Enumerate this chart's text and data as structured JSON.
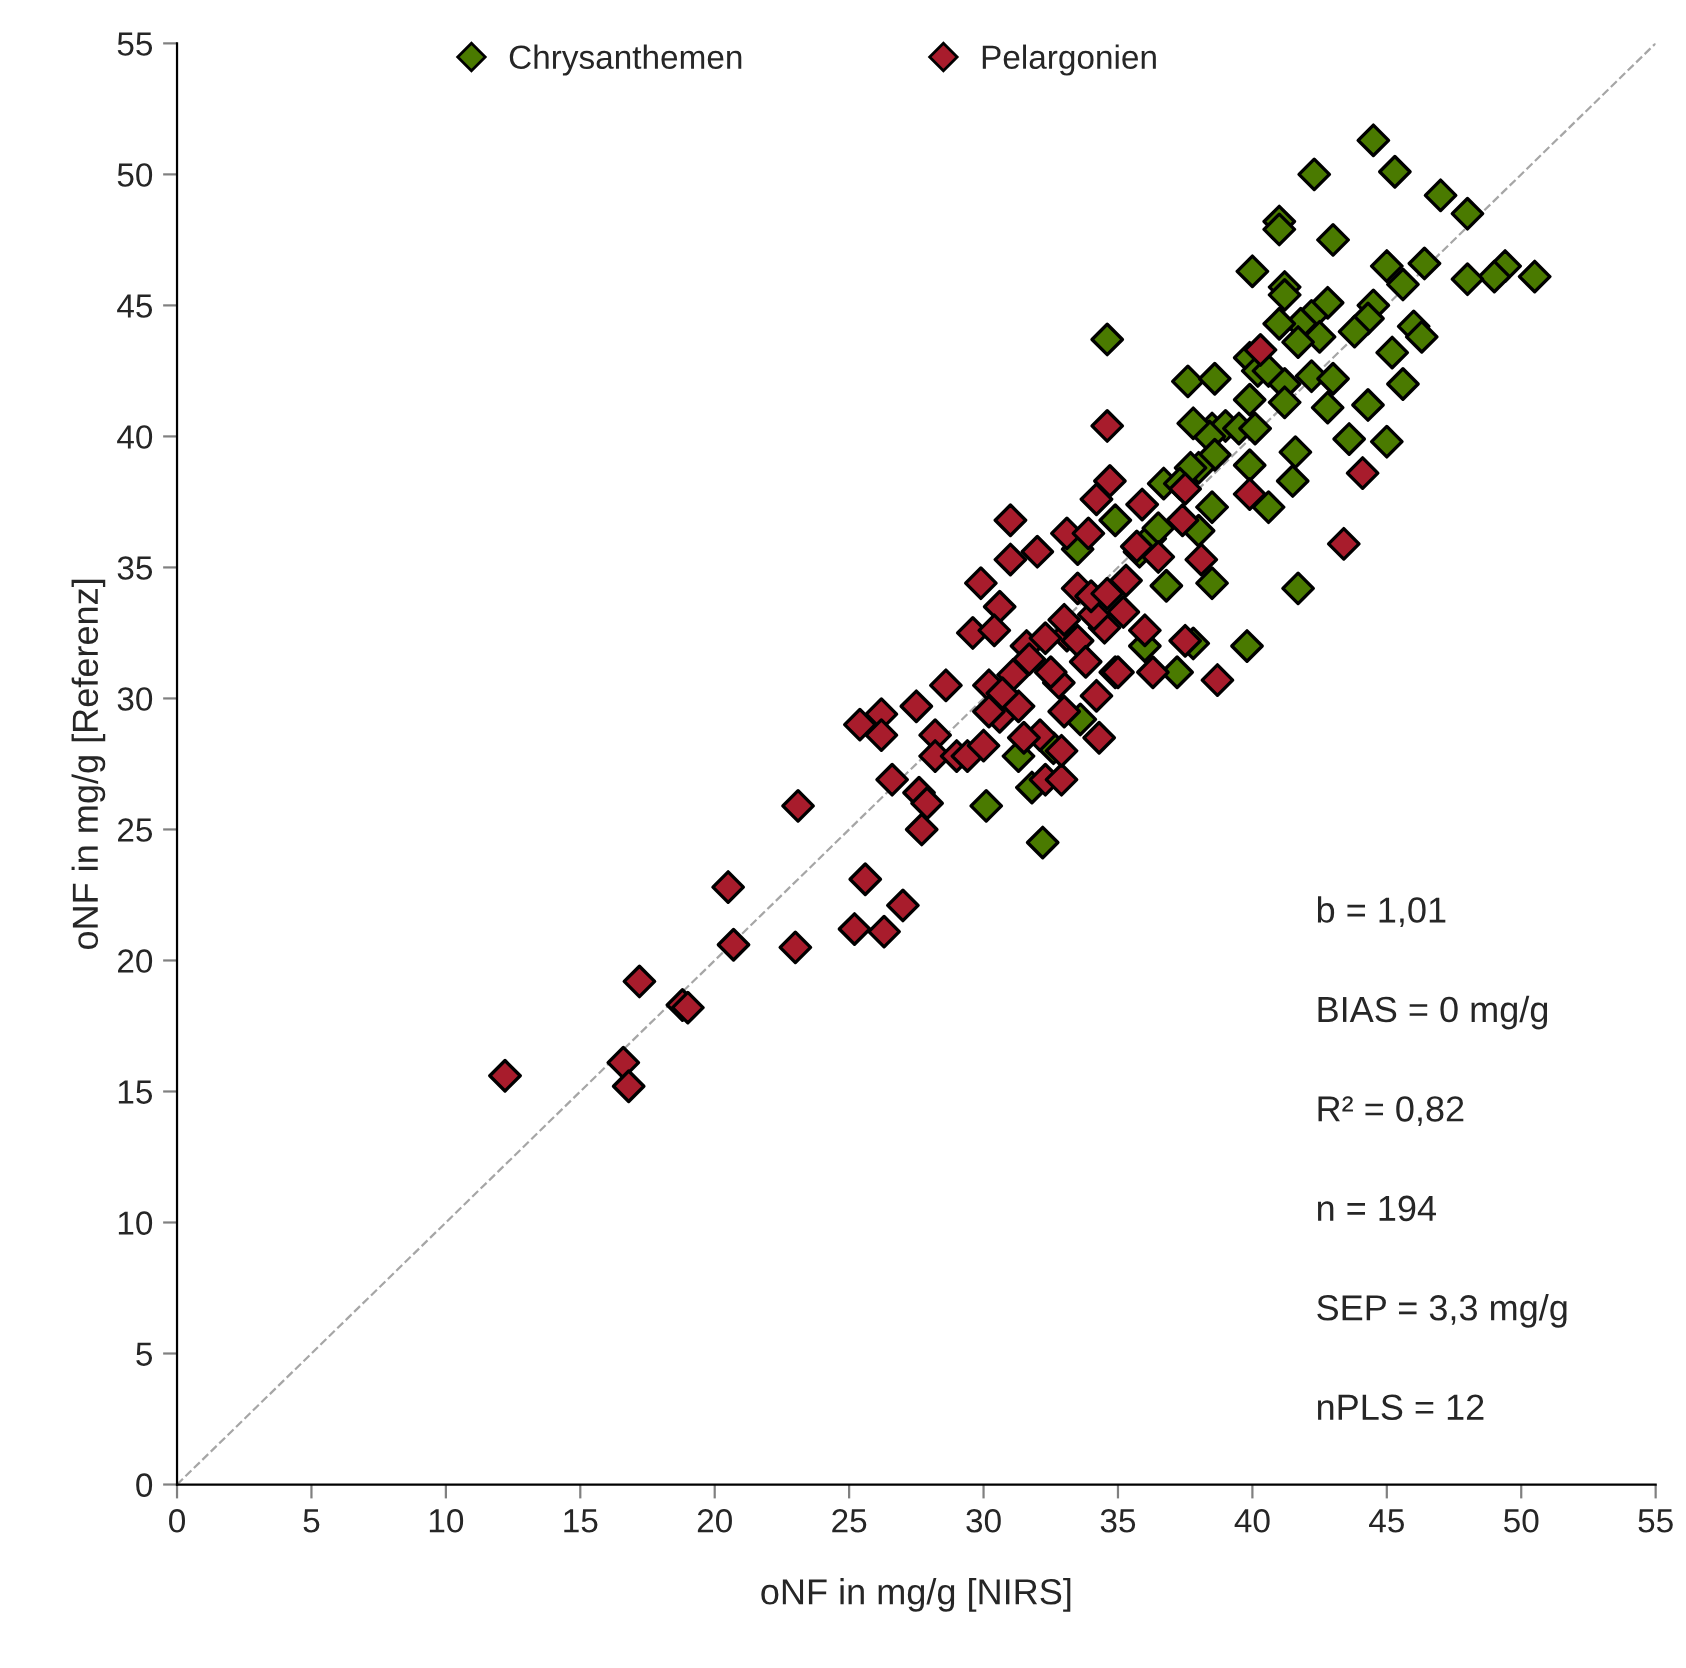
{
  "chart_data": {
    "type": "scatter",
    "xlabel": "oNF in mg/g [NIRS]",
    "ylabel": "oNF in mg/g [Referenz]",
    "xlim": [
      0,
      55
    ],
    "ylim": [
      0,
      55
    ],
    "xticks": [
      0,
      5,
      10,
      15,
      20,
      25,
      30,
      35,
      40,
      45,
      50,
      55
    ],
    "yticks": [
      0,
      5,
      10,
      15,
      20,
      25,
      30,
      35,
      40,
      45,
      50,
      55
    ],
    "grid": false,
    "legend": "top",
    "marker": "diamond",
    "annotations": [
      "b = 1,01",
      "BIAS = 0 mg/g",
      "R² = 0,82",
      "n = 194",
      "SEP = 3,3 mg/g",
      "nPLS = 12"
    ],
    "series": [
      {
        "type": "line",
        "color": "#a6a6a6",
        "line_style": "dashed",
        "marker": "none",
        "x": [
          0,
          55
        ],
        "values": [
          0,
          55
        ]
      },
      {
        "name": "Chrysanthemen",
        "color": "#4a7a00",
        "x": [
          44.5,
          42.3,
          45.3,
          47,
          48,
          41,
          41,
          43,
          45,
          46.4,
          49.4,
          49,
          50.5,
          48,
          40,
          41.2,
          41.2,
          42.8,
          44.5,
          45.6,
          46,
          46.3,
          44.3,
          42.2,
          41.8,
          41,
          43.8,
          42.5,
          41.7,
          39.9,
          40.2,
          42.2,
          43,
          40.6,
          41.2,
          45.2,
          45.6,
          41.2,
          42.8,
          44.3,
          39.9,
          37.6,
          38.6,
          34.6,
          38.5,
          39,
          39.5,
          38.4,
          37.8,
          40.1,
          41.6,
          43.6,
          45,
          38.6,
          39.9,
          38,
          37.7,
          36.7,
          37.3,
          40.6,
          41.5,
          38.5,
          38,
          36.2,
          34.9,
          36.5,
          33.5,
          35.8,
          36.8,
          38.5,
          37.8,
          36,
          39.8,
          41.7,
          37.2,
          34.9,
          31.3,
          30.1,
          32.2,
          31.8,
          32.6,
          33.6
        ],
        "values": [
          51.3,
          50,
          50.1,
          49.2,
          48.5,
          48.2,
          47.9,
          47.5,
          46.5,
          46.6,
          46.5,
          46.1,
          46.1,
          46,
          46.3,
          45.7,
          45.4,
          45.1,
          45,
          45.8,
          44.2,
          43.8,
          44.5,
          44.6,
          44.3,
          44.3,
          44,
          43.8,
          43.6,
          43,
          42.5,
          42.3,
          42.2,
          42.5,
          42,
          43.2,
          42,
          41.3,
          41.1,
          41.2,
          41.4,
          42.1,
          42.2,
          43.7,
          40.3,
          40.4,
          40.3,
          40,
          40.5,
          40.3,
          39.4,
          39.9,
          39.8,
          39.3,
          38.9,
          38.8,
          38.8,
          38.2,
          38.2,
          37.3,
          38.3,
          37.3,
          36.4,
          36.1,
          36.8,
          36.5,
          35.7,
          35.6,
          34.3,
          34.4,
          32.1,
          32,
          32,
          34.2,
          31,
          31,
          27.8,
          25.9,
          24.5,
          26.6,
          28.1,
          29.2
        ]
      },
      {
        "name": "Pelargonien",
        "color": "#a81c2c",
        "x": [
          12.2,
          16.6,
          16.8,
          17.2,
          18.8,
          19,
          20.5,
          20.7,
          23,
          23.1,
          25.2,
          25.6,
          26.3,
          26.6,
          27,
          25.4,
          26.2,
          26.2,
          27.5,
          27.6,
          27.7,
          27.9,
          28.2,
          28.2,
          28.6,
          29,
          29.4,
          29.6,
          29.9,
          30,
          30.2,
          30.6,
          30.6,
          30.4,
          31.1,
          31,
          31,
          31.6,
          31.3,
          32,
          31.7,
          32.1,
          32.3,
          32.8,
          32.5,
          33.1,
          33.5,
          33.1,
          33.5,
          33.8,
          33,
          32.9,
          34.5,
          34.1,
          34,
          34.2,
          34.3,
          34.2,
          33.9,
          34.6,
          35,
          35.3,
          34.7,
          34.6,
          35.9,
          35.7,
          36,
          36.5,
          37.4,
          37.5,
          38.1,
          38.7,
          37.5,
          39.9,
          40.3,
          43.4,
          44.1,
          32.9,
          31.5,
          30.2,
          35.2,
          36.3,
          33,
          32.3,
          30.7
        ],
        "values": [
          15.6,
          16.1,
          15.2,
          19.2,
          18.3,
          18.2,
          22.8,
          20.6,
          20.5,
          25.9,
          21.2,
          23.1,
          21.1,
          26.9,
          22.1,
          29,
          29.4,
          28.6,
          29.7,
          26.4,
          25,
          26,
          28.6,
          27.8,
          30.5,
          27.8,
          27.8,
          32.5,
          34.4,
          28.2,
          30.5,
          33.5,
          29.3,
          32.6,
          30.9,
          35.3,
          36.8,
          32,
          29.7,
          35.6,
          31.5,
          28.6,
          26.9,
          30.6,
          31,
          36.3,
          34.2,
          32.4,
          32.2,
          31.4,
          29.5,
          26.9,
          32.7,
          33.2,
          33.9,
          30.1,
          28.5,
          37.6,
          36.3,
          34,
          31,
          34.5,
          38.3,
          40.4,
          37.4,
          35.8,
          32.6,
          35.4,
          36.8,
          32.2,
          35.3,
          30.7,
          38,
          37.8,
          43.3,
          35.9,
          38.6,
          28,
          28.5,
          29.5,
          33.3,
          31,
          33,
          32.3,
          30.2
        ]
      }
    ]
  }
}
